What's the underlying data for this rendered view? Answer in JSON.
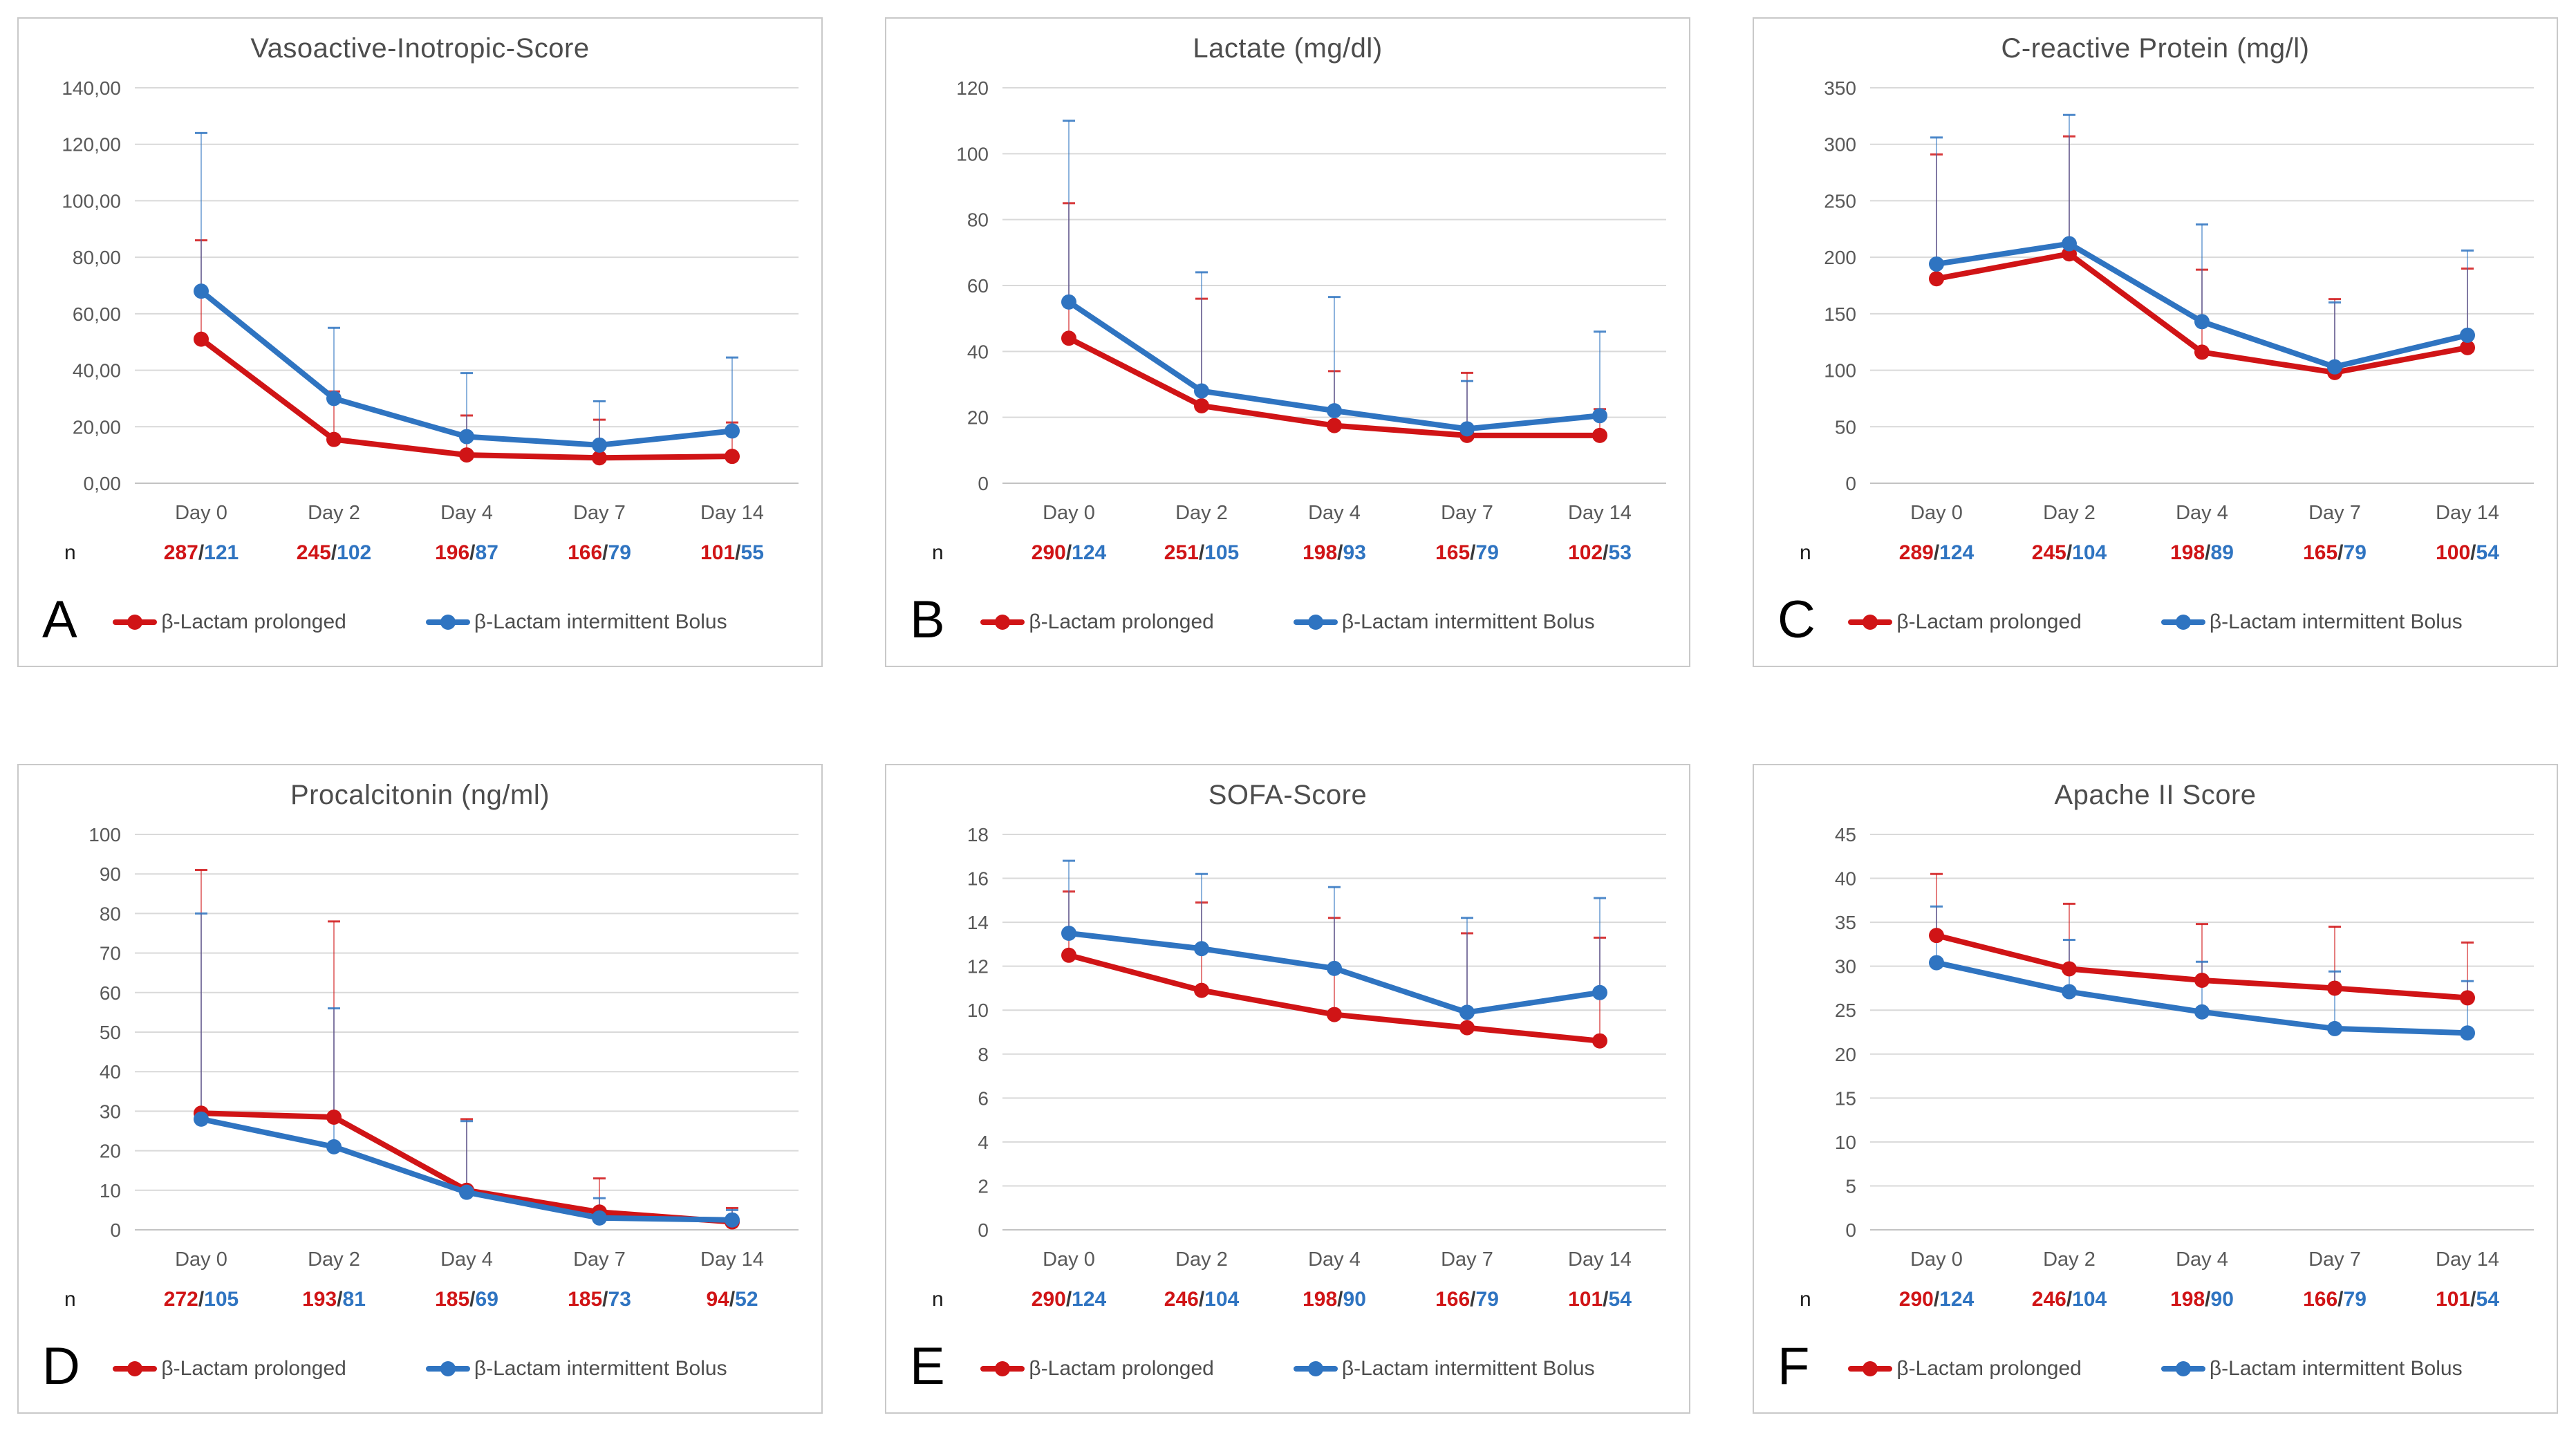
{
  "colors": {
    "red": "#d01416",
    "blue": "#2f74c1",
    "grid": "#d9d9d9",
    "zero_line": "#c3c3c3",
    "axis_text": "#595959",
    "title_text": "#4d4d4d",
    "slash": "#3a3a3a",
    "n_label_text": "#1a1a1a",
    "panel_border": "#c9c9c9"
  },
  "figure": {
    "n_label": "n"
  },
  "chart_data": [
    {
      "panel_letter": "A",
      "title": "Vasoactive-Inotropic-Score",
      "type": "line",
      "grid": true,
      "legend_position": "bottom",
      "categories": [
        "Day 0",
        "Day 2",
        "Day 4",
        "Day 7",
        "Day 14"
      ],
      "ylim": [
        0,
        140
      ],
      "ytick_step": 20,
      "decimal_comma_labels": true,
      "series": [
        {
          "name": "β-Lactam prolonged",
          "color": "#d01416",
          "values": [
            51,
            15.5,
            10,
            9,
            9.5
          ],
          "err_upper": [
            86,
            32.5,
            24,
            22.5,
            21.5
          ]
        },
        {
          "name": "β-Lactam intermittent Bolus",
          "color": "#2f74c1",
          "values": [
            68,
            30,
            16.5,
            13.5,
            18.5
          ],
          "err_upper": [
            124,
            55,
            39,
            29,
            44.5
          ]
        }
      ],
      "n_values": [
        {
          "prolonged": "287",
          "bolus": "121"
        },
        {
          "prolonged": "245",
          "bolus": "102"
        },
        {
          "prolonged": "196",
          "bolus": "87"
        },
        {
          "prolonged": "166",
          "bolus": "79"
        },
        {
          "prolonged": "101",
          "bolus": "55"
        }
      ]
    },
    {
      "panel_letter": "B",
      "title": "Lactate (mg/dl)",
      "type": "line",
      "grid": true,
      "legend_position": "bottom",
      "categories": [
        "Day 0",
        "Day 2",
        "Day 4",
        "Day 7",
        "Day 14"
      ],
      "ylim": [
        0,
        120
      ],
      "ytick_step": 20,
      "decimal_comma_labels": false,
      "series": [
        {
          "name": "β-Lactam prolonged",
          "color": "#d01416",
          "values": [
            44,
            23.5,
            17.5,
            14.5,
            14.5
          ],
          "err_upper": [
            85,
            56,
            34,
            33.5,
            22.5
          ]
        },
        {
          "name": "β-Lactam intermittent Bolus",
          "color": "#2f74c1",
          "values": [
            55,
            28,
            22,
            16.5,
            20.5
          ],
          "err_upper": [
            110,
            64,
            56.5,
            31,
            46
          ]
        }
      ],
      "n_values": [
        {
          "prolonged": "290",
          "bolus": "124"
        },
        {
          "prolonged": "251",
          "bolus": "105"
        },
        {
          "prolonged": "198",
          "bolus": "93"
        },
        {
          "prolonged": "165",
          "bolus": "79"
        },
        {
          "prolonged": "102",
          "bolus": "53"
        }
      ]
    },
    {
      "panel_letter": "C",
      "title": "C-reactive Protein (mg/l)",
      "type": "line",
      "grid": true,
      "legend_position": "bottom",
      "categories": [
        "Day 0",
        "Day 2",
        "Day 4",
        "Day 7",
        "Day 14"
      ],
      "ylim": [
        0,
        350
      ],
      "ytick_step": 50,
      "decimal_comma_labels": false,
      "series": [
        {
          "name": "β-Lactam prolonged",
          "color": "#d01416",
          "values": [
            181,
            203,
            116,
            98,
            120
          ],
          "err_upper": [
            291,
            307,
            189,
            163,
            190
          ]
        },
        {
          "name": "β-Lactam intermittent Bolus",
          "color": "#2f74c1",
          "values": [
            194,
            212,
            143,
            103,
            131
          ],
          "err_upper": [
            306,
            326,
            229,
            160,
            206
          ]
        }
      ],
      "n_values": [
        {
          "prolonged": "289",
          "bolus": "124"
        },
        {
          "prolonged": "245",
          "bolus": "104"
        },
        {
          "prolonged": "198",
          "bolus": "89"
        },
        {
          "prolonged": "165",
          "bolus": "79"
        },
        {
          "prolonged": "100",
          "bolus": "54"
        }
      ]
    },
    {
      "panel_letter": "D",
      "title": "Procalcitonin (ng/ml)",
      "type": "line",
      "grid": true,
      "legend_position": "bottom",
      "categories": [
        "Day 0",
        "Day 2",
        "Day 4",
        "Day 7",
        "Day 14"
      ],
      "ylim": [
        0,
        100
      ],
      "ytick_step": 10,
      "decimal_comma_labels": false,
      "series": [
        {
          "name": "β-Lactam prolonged",
          "color": "#d01416",
          "values": [
            29.5,
            28.5,
            10,
            4.5,
            2
          ],
          "err_upper": [
            91,
            78,
            28,
            13,
            5.5
          ]
        },
        {
          "name": "β-Lactam intermittent Bolus",
          "color": "#2f74c1",
          "values": [
            28,
            21,
            9.5,
            3,
            2.5
          ],
          "err_upper": [
            80,
            56,
            27.5,
            8,
            5
          ]
        }
      ],
      "n_values": [
        {
          "prolonged": "272",
          "bolus": "105"
        },
        {
          "prolonged": "193",
          "bolus": "81"
        },
        {
          "prolonged": "185",
          "bolus": "69"
        },
        {
          "prolonged": "185",
          "bolus": "73"
        },
        {
          "prolonged": "94",
          "bolus": "52"
        }
      ]
    },
    {
      "panel_letter": "E",
      "title": "SOFA-Score",
      "type": "line",
      "grid": true,
      "legend_position": "bottom",
      "categories": [
        "Day 0",
        "Day 2",
        "Day 4",
        "Day 7",
        "Day 14"
      ],
      "ylim": [
        0,
        18
      ],
      "ytick_step": 2,
      "decimal_comma_labels": false,
      "series": [
        {
          "name": "β-Lactam prolonged",
          "color": "#d01416",
          "values": [
            12.5,
            10.9,
            9.8,
            9.2,
            8.6
          ],
          "err_upper": [
            15.4,
            14.9,
            14.2,
            13.5,
            13.3
          ]
        },
        {
          "name": "β-Lactam intermittent Bolus",
          "color": "#2f74c1",
          "values": [
            13.5,
            12.8,
            11.9,
            9.9,
            10.8
          ],
          "err_upper": [
            16.8,
            16.2,
            15.6,
            14.2,
            15.1
          ]
        }
      ],
      "n_values": [
        {
          "prolonged": "290",
          "bolus": "124"
        },
        {
          "prolonged": "246",
          "bolus": "104"
        },
        {
          "prolonged": "198",
          "bolus": "90"
        },
        {
          "prolonged": "166",
          "bolus": "79"
        },
        {
          "prolonged": "101",
          "bolus": "54"
        }
      ]
    },
    {
      "panel_letter": "F",
      "title": "Apache II Score",
      "type": "line",
      "grid": true,
      "legend_position": "bottom",
      "categories": [
        "Day 0",
        "Day 2",
        "Day 4",
        "Day 7",
        "Day 14"
      ],
      "ylim": [
        0,
        45
      ],
      "ytick_step": 5,
      "decimal_comma_labels": false,
      "series": [
        {
          "name": "β-Lactam prolonged",
          "color": "#d01416",
          "values": [
            33.5,
            29.7,
            28.4,
            27.5,
            26.4
          ],
          "err_upper": [
            40.5,
            37.1,
            34.8,
            34.5,
            32.7
          ]
        },
        {
          "name": "β-Lactam intermittent Bolus",
          "color": "#2f74c1",
          "values": [
            30.4,
            27.1,
            24.8,
            22.9,
            22.4
          ],
          "err_upper": [
            36.8,
            33,
            30.5,
            29.4,
            28.3
          ]
        }
      ],
      "n_values": [
        {
          "prolonged": "290",
          "bolus": "124"
        },
        {
          "prolonged": "246",
          "bolus": "104"
        },
        {
          "prolonged": "198",
          "bolus": "90"
        },
        {
          "prolonged": "166",
          "bolus": "79"
        },
        {
          "prolonged": "101",
          "bolus": "54"
        }
      ]
    }
  ]
}
